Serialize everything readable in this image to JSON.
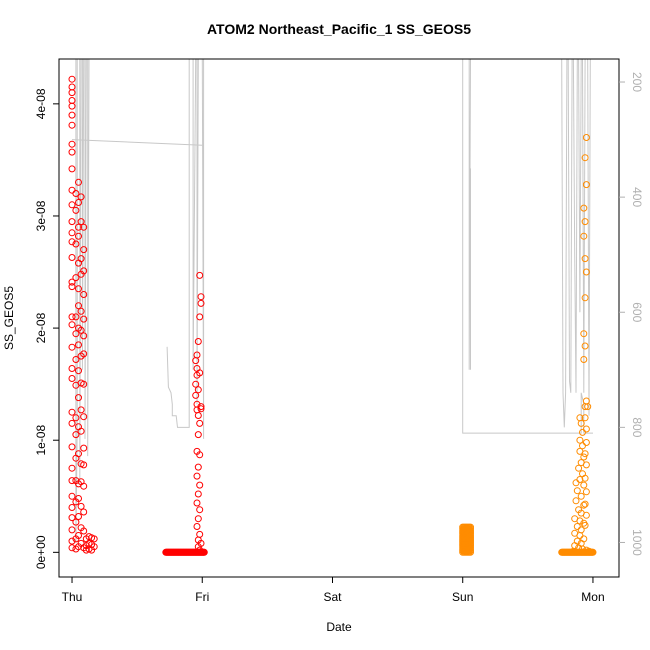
{
  "chart_data": {
    "type": "scatter",
    "title": "ATOM2 Northeast_Pacific_1 SS_GEOS5",
    "xlabel": "Date",
    "ylabel": "SS_GEOS5",
    "x_ticks": [
      "Thu",
      "Fri",
      "Sat",
      "Sun",
      "Mon"
    ],
    "y_ticks": [
      "0e+00",
      "1e-08",
      "2e-08",
      "3e-08",
      "4e-08"
    ],
    "y_tick_values": [
      0,
      1e-08,
      2e-08,
      3e-08,
      4e-08
    ],
    "ylim": [
      -2.2e-09,
      4.4e-08
    ],
    "xlim": [
      -0.1,
      4.2
    ],
    "y2_ticks": [
      "200",
      "400",
      "600",
      "800",
      "1000"
    ],
    "y2_tick_values": [
      200,
      400,
      600,
      800,
      1000
    ],
    "y2lim": [
      1060,
      160
    ],
    "y2_reversed": true,
    "grid": false,
    "series": [
      {
        "color": "#ff0000",
        "marker": "open-circle",
        "points": [
          [
            0.0,
            4.22e-08
          ],
          [
            0.0,
            4.15e-08
          ],
          [
            0.0,
            4.1e-08
          ],
          [
            0.0,
            4.03e-08
          ],
          [
            0.0,
            3.98e-08
          ],
          [
            0.0,
            3.9e-08
          ],
          [
            0.0,
            3.81e-08
          ],
          [
            0.0,
            3.64e-08
          ],
          [
            0.0,
            3.57e-08
          ],
          [
            0.0,
            3.42e-08
          ],
          [
            0.0,
            3.23e-08
          ],
          [
            0.0,
            3.1e-08
          ],
          [
            0.0,
            2.95e-08
          ],
          [
            0.0,
            2.85e-08
          ],
          [
            0.0,
            2.77e-08
          ],
          [
            0.0,
            2.63e-08
          ],
          [
            0.0,
            2.41e-08
          ],
          [
            0.0,
            2.37e-08
          ],
          [
            0.0,
            2.1e-08
          ],
          [
            0.0,
            2.03e-08
          ],
          [
            0.0,
            1.83e-08
          ],
          [
            0.0,
            1.64e-08
          ],
          [
            0.0,
            1.55e-08
          ],
          [
            0.0,
            1.25e-08
          ],
          [
            0.0,
            1.15e-08
          ],
          [
            0.0,
            9.4e-09
          ],
          [
            0.0,
            7.5e-09
          ],
          [
            0.0,
            6.4e-09
          ],
          [
            0.0,
            5e-09
          ],
          [
            0.0,
            4e-09
          ],
          [
            0.0,
            3.1e-09
          ],
          [
            0.0,
            2e-09
          ],
          [
            0.0,
            1e-09
          ],
          [
            0.0,
            4e-10
          ],
          [
            0.03,
            3.2e-08
          ],
          [
            0.03,
            3.05e-08
          ],
          [
            0.03,
            2.75e-08
          ],
          [
            0.03,
            2.45e-08
          ],
          [
            0.03,
            2.1e-08
          ],
          [
            0.03,
            1.95e-08
          ],
          [
            0.03,
            1.72e-08
          ],
          [
            0.03,
            1.49e-08
          ],
          [
            0.03,
            1.2e-08
          ],
          [
            0.03,
            1.05e-08
          ],
          [
            0.03,
            8.4e-09
          ],
          [
            0.03,
            6.4e-09
          ],
          [
            0.03,
            4.5e-09
          ],
          [
            0.03,
            2.7e-09
          ],
          [
            0.03,
            1.2e-09
          ],
          [
            0.03,
            3e-10
          ],
          [
            0.05,
            3.3e-08
          ],
          [
            0.05,
            3.12e-08
          ],
          [
            0.05,
            2.9e-08
          ],
          [
            0.05,
            2.82e-08
          ],
          [
            0.05,
            2.58e-08
          ],
          [
            0.05,
            2.35e-08
          ],
          [
            0.05,
            2.2e-08
          ],
          [
            0.05,
            2e-08
          ],
          [
            0.05,
            1.85e-08
          ],
          [
            0.05,
            1.62e-08
          ],
          [
            0.05,
            1.38e-08
          ],
          [
            0.05,
            1.12e-08
          ],
          [
            0.05,
            8.8e-09
          ],
          [
            0.05,
            6.1e-09
          ],
          [
            0.05,
            4.8e-09
          ],
          [
            0.05,
            3.2e-09
          ],
          [
            0.05,
            1.5e-09
          ],
          [
            0.05,
            5e-10
          ],
          [
            0.07,
            3.17e-08
          ],
          [
            0.07,
            2.95e-08
          ],
          [
            0.07,
            2.62e-08
          ],
          [
            0.07,
            2.48e-08
          ],
          [
            0.07,
            2.15e-08
          ],
          [
            0.07,
            1.98e-08
          ],
          [
            0.07,
            1.75e-08
          ],
          [
            0.07,
            1.51e-08
          ],
          [
            0.07,
            1.27e-08
          ],
          [
            0.07,
            1.08e-08
          ],
          [
            0.07,
            7.9e-09
          ],
          [
            0.07,
            6.3e-09
          ],
          [
            0.07,
            4.1e-09
          ],
          [
            0.07,
            2.2e-09
          ],
          [
            0.07,
            8e-10
          ],
          [
            0.09,
            2.9e-08
          ],
          [
            0.09,
            2.7e-08
          ],
          [
            0.09,
            2.51e-08
          ],
          [
            0.09,
            2.3e-08
          ],
          [
            0.09,
            2.08e-08
          ],
          [
            0.09,
            1.93e-08
          ],
          [
            0.09,
            1.77e-08
          ],
          [
            0.09,
            1.5e-08
          ],
          [
            0.09,
            1.21e-08
          ],
          [
            0.09,
            9.3e-09
          ],
          [
            0.09,
            7.8e-09
          ],
          [
            0.09,
            5.9e-09
          ],
          [
            0.09,
            3.6e-09
          ],
          [
            0.09,
            1.9e-09
          ],
          [
            0.09,
            4e-10
          ],
          [
            0.11,
            1.2e-09
          ],
          [
            0.11,
            6e-10
          ],
          [
            0.11,
            2e-10
          ],
          [
            0.13,
            1.4e-09
          ],
          [
            0.13,
            8e-10
          ],
          [
            0.13,
            3e-10
          ],
          [
            0.15,
            1.3e-09
          ],
          [
            0.15,
            7e-10
          ],
          [
            0.15,
            2e-10
          ],
          [
            0.17,
            1.2e-09
          ],
          [
            0.17,
            5e-10
          ],
          [
            0.98,
            2.47e-08
          ],
          [
            0.99,
            2.28e-08
          ],
          [
            0.99,
            2.22e-08
          ],
          [
            0.98,
            2.1e-08
          ],
          [
            0.97,
            1.88e-08
          ],
          [
            0.96,
            1.76e-08
          ],
          [
            0.95,
            1.71e-08
          ],
          [
            0.96,
            1.64e-08
          ],
          [
            0.96,
            1.58e-08
          ],
          [
            0.95,
            1.5e-08
          ],
          [
            0.95,
            1.4e-08
          ],
          [
            0.96,
            1.32e-08
          ],
          [
            0.96,
            1.27e-08
          ],
          [
            0.97,
            1.22e-08
          ],
          [
            0.99,
            1.28e-08
          ],
          [
            0.99,
            1.3e-08
          ],
          [
            0.98,
            1.15e-08
          ],
          [
            0.97,
            1.05e-08
          ],
          [
            0.96,
            9e-09
          ],
          [
            0.98,
            8.7e-09
          ],
          [
            0.97,
            7.6e-09
          ],
          [
            0.96,
            6.8e-09
          ],
          [
            0.98,
            6e-09
          ],
          [
            0.97,
            5.2e-09
          ],
          [
            0.96,
            4.4e-09
          ],
          [
            0.98,
            3.8e-09
          ],
          [
            0.97,
            3e-09
          ],
          [
            0.96,
            2.3e-09
          ],
          [
            0.98,
            1.6e-09
          ],
          [
            0.97,
            1.1e-09
          ],
          [
            0.99,
            8e-10
          ],
          [
            0.97,
            5e-10
          ],
          [
            0.98,
            2e-10
          ],
          [
            0.97,
            1.45e-08
          ],
          [
            0.98,
            1.6e-08
          ]
        ],
        "band": {
          "x_from": 0.72,
          "x_to": 1.02,
          "y_from": 0,
          "y_to": 3e-10
        }
      },
      {
        "color": "#ff8c00",
        "marker": "open-circle",
        "points": [
          [
            3.95,
            3.7e-08
          ],
          [
            3.94,
            3.52e-08
          ],
          [
            3.95,
            3.28e-08
          ],
          [
            3.93,
            3.07e-08
          ],
          [
            3.94,
            2.95e-08
          ],
          [
            3.93,
            2.82e-08
          ],
          [
            3.94,
            2.62e-08
          ],
          [
            3.95,
            2.5e-08
          ],
          [
            3.94,
            2.27e-08
          ],
          [
            3.93,
            1.95e-08
          ],
          [
            3.94,
            1.84e-08
          ],
          [
            3.93,
            1.72e-08
          ],
          [
            3.95,
            1.35e-08
          ],
          [
            3.94,
            1.3e-08
          ],
          [
            3.96,
            1.3e-08
          ],
          [
            3.9,
            1.2e-08
          ],
          [
            3.91,
            1.15e-08
          ],
          [
            3.92,
            1.07e-08
          ],
          [
            3.9,
            1e-08
          ],
          [
            3.92,
            9.5e-09
          ],
          [
            3.9,
            9e-09
          ],
          [
            3.93,
            8.5e-09
          ],
          [
            3.91,
            8e-09
          ],
          [
            3.89,
            7.5e-09
          ],
          [
            3.92,
            7e-09
          ],
          [
            3.9,
            6.5e-09
          ],
          [
            3.87,
            6.2e-09
          ],
          [
            3.93,
            6e-09
          ],
          [
            3.88,
            5.5e-09
          ],
          [
            3.91,
            5e-09
          ],
          [
            3.87,
            4.6e-09
          ],
          [
            3.93,
            4.2e-09
          ],
          [
            3.89,
            3.8e-09
          ],
          [
            3.91,
            3.5e-09
          ],
          [
            3.86,
            3e-09
          ],
          [
            3.9,
            2.8e-09
          ],
          [
            3.93,
            2.6e-09
          ],
          [
            3.88,
            2.3e-09
          ],
          [
            3.91,
            2e-09
          ],
          [
            3.86,
            1.7e-09
          ],
          [
            3.9,
            1.5e-09
          ],
          [
            3.93,
            1.2e-09
          ],
          [
            3.88,
            1e-09
          ],
          [
            3.91,
            8e-10
          ],
          [
            3.86,
            6e-10
          ],
          [
            3.89,
            4e-10
          ],
          [
            3.92,
            3e-10
          ],
          [
            3.95,
            2e-10
          ],
          [
            3.97,
            1e-10
          ],
          [
            3.85,
            1e-10
          ],
          [
            3.94,
            1.2e-08
          ],
          [
            3.95,
            1.1e-08
          ],
          [
            3.95,
            9.8e-09
          ],
          [
            3.94,
            8.8e-09
          ],
          [
            3.95,
            7.8e-09
          ],
          [
            3.94,
            6.6e-09
          ],
          [
            3.95,
            5.4e-09
          ],
          [
            3.94,
            4.3e-09
          ],
          [
            3.95,
            3.3e-09
          ],
          [
            3.94,
            2.4e-09
          ]
        ],
        "band": {
          "x_from": 3.76,
          "x_to": 4.0,
          "y_from": 0,
          "y_to": 2e-10
        },
        "cluster": {
          "x_from": 3.0,
          "x_to": 3.06,
          "y_from": 0,
          "y_to": 2.4e-09
        }
      }
    ],
    "overlay_line": {
      "color": "#c8c8c8",
      "axis": "right",
      "segments": [
        [
          [
            0.03,
            160
          ],
          [
            0.03,
            1000
          ],
          [
            0.04,
            800
          ],
          [
            0.04,
            160
          ]
        ],
        [
          [
            0.06,
            160
          ],
          [
            0.06,
            900
          ],
          [
            0.07,
            160
          ]
        ],
        [
          [
            0.08,
            160
          ],
          [
            0.08,
            700
          ],
          [
            0.09,
            160
          ]
        ],
        [
          [
            0.1,
            160
          ],
          [
            0.1,
            820
          ],
          [
            0.11,
            160
          ]
        ],
        [
          [
            0.12,
            160
          ],
          [
            0.12,
            850
          ],
          [
            0.13,
            160
          ]
        ],
        [
          [
            0.0,
            300
          ],
          [
            1.0,
            310
          ]
        ],
        [
          [
            0.73,
            660
          ],
          [
            0.74,
            730
          ],
          [
            0.76,
            740
          ],
          [
            0.77,
            760
          ],
          [
            0.77,
            780
          ],
          [
            0.8,
            780
          ],
          [
            0.81,
            800
          ],
          [
            0.9,
            800
          ],
          [
            0.9,
            160
          ]
        ],
        [
          [
            0.93,
            160
          ],
          [
            0.93,
            700
          ],
          [
            0.95,
            160
          ]
        ],
        [
          [
            0.96,
            160
          ],
          [
            0.96,
            760
          ],
          [
            0.97,
            160
          ]
        ],
        [
          [
            1.0,
            160
          ],
          [
            1.01,
            820
          ],
          [
            1.01,
            160
          ]
        ],
        [
          [
            3.0,
            160
          ],
          [
            3.0,
            810
          ],
          [
            3.91,
            810
          ],
          [
            3.91,
            740
          ],
          [
            3.93,
            760
          ],
          [
            3.93,
            810
          ],
          [
            4.0,
            810
          ]
        ],
        [
          [
            3.05,
            160
          ],
          [
            3.05,
            700
          ],
          [
            3.06,
            160
          ]
        ],
        [
          [
            3.06,
            350
          ],
          [
            3.06,
            700
          ]
        ],
        [
          [
            3.76,
            160
          ],
          [
            3.77,
            740
          ],
          [
            3.78,
            800
          ],
          [
            3.79,
            740
          ],
          [
            3.8,
            160
          ]
        ],
        [
          [
            3.81,
            160
          ],
          [
            3.82,
            720
          ],
          [
            3.83,
            740
          ],
          [
            3.84,
            160
          ]
        ],
        [
          [
            3.85,
            160
          ],
          [
            3.86,
            500
          ],
          [
            3.87,
            740
          ],
          [
            3.88,
            160
          ]
        ],
        [
          [
            3.89,
            160
          ],
          [
            3.9,
            600
          ],
          [
            3.91,
            160
          ]
        ],
        [
          [
            3.92,
            160
          ],
          [
            3.93,
            740
          ],
          [
            3.94,
            160
          ]
        ],
        [
          [
            3.96,
            160
          ],
          [
            3.97,
            780
          ],
          [
            3.98,
            160
          ]
        ]
      ]
    }
  }
}
